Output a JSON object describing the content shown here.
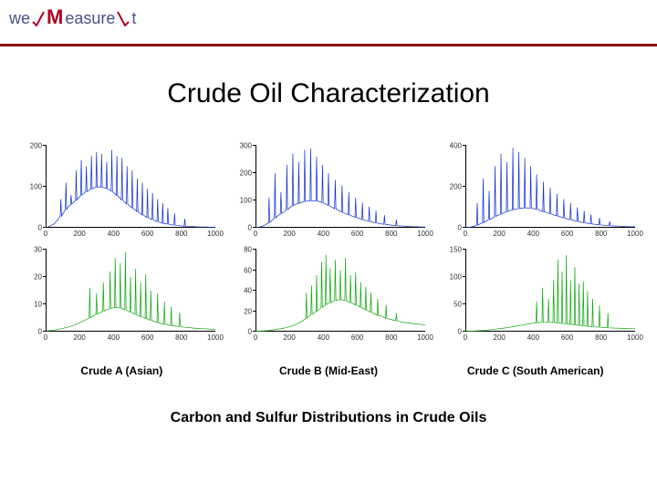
{
  "brand": {
    "we": "we",
    "m": "M",
    "easure": "easure",
    "it": "t"
  },
  "title": "Crude Oil Characterization",
  "subtitle": "Carbon and Sulfur Distributions in Crude Oils",
  "labels": [
    "Crude A (Asian)",
    "Crude B (Mid-East)",
    "Crude C (South American)"
  ],
  "colors": {
    "blue": "#1030d0",
    "green": "#10a810",
    "axis": "#000000",
    "rule": "#8a1515"
  },
  "axis_x": {
    "min": 0,
    "max": 1000,
    "ticks": [
      0,
      200,
      400,
      600,
      800,
      1000
    ]
  },
  "charts": [
    {
      "id": "A_blue",
      "row": 0,
      "col": 0,
      "color": "blue",
      "ymax": 200,
      "yticks": [
        0,
        100,
        200
      ],
      "baseline": [
        0,
        4,
        10,
        22,
        35,
        48,
        58,
        68,
        78,
        86,
        92,
        97,
        100,
        99,
        96,
        90,
        82,
        73,
        64,
        56,
        48,
        40,
        33,
        27,
        22,
        18,
        14,
        11,
        9,
        7,
        6,
        5,
        4,
        3,
        3,
        2,
        2,
        2,
        1,
        1
      ],
      "spikes": [
        [
          90,
          70
        ],
        [
          120,
          110
        ],
        [
          150,
          80
        ],
        [
          180,
          140
        ],
        [
          210,
          165
        ],
        [
          240,
          150
        ],
        [
          270,
          175
        ],
        [
          300,
          185
        ],
        [
          330,
          180
        ],
        [
          360,
          160
        ],
        [
          390,
          190
        ],
        [
          420,
          175
        ],
        [
          450,
          170
        ],
        [
          480,
          150
        ],
        [
          510,
          140
        ],
        [
          540,
          120
        ],
        [
          570,
          110
        ],
        [
          600,
          95
        ],
        [
          630,
          85
        ],
        [
          660,
          70
        ],
        [
          690,
          60
        ],
        [
          720,
          48
        ],
        [
          760,
          35
        ],
        [
          820,
          22
        ]
      ]
    },
    {
      "id": "B_blue",
      "row": 0,
      "col": 1,
      "color": "blue",
      "ymax": 300,
      "yticks": [
        0,
        100,
        200,
        300
      ],
      "baseline": [
        0,
        3,
        8,
        18,
        30,
        42,
        52,
        64,
        75,
        84,
        90,
        95,
        98,
        99,
        98,
        94,
        88,
        80,
        72,
        64,
        57,
        50,
        44,
        38,
        33,
        28,
        24,
        20,
        17,
        14,
        12,
        10,
        8,
        7,
        6,
        5,
        4,
        4,
        3,
        3
      ],
      "spikes": [
        [
          80,
          110
        ],
        [
          115,
          200
        ],
        [
          150,
          130
        ],
        [
          185,
          230
        ],
        [
          220,
          270
        ],
        [
          255,
          240
        ],
        [
          290,
          285
        ],
        [
          325,
          290
        ],
        [
          360,
          260
        ],
        [
          395,
          230
        ],
        [
          430,
          200
        ],
        [
          470,
          175
        ],
        [
          510,
          155
        ],
        [
          550,
          130
        ],
        [
          590,
          110
        ],
        [
          630,
          92
        ],
        [
          670,
          78
        ],
        [
          710,
          62
        ],
        [
          760,
          46
        ],
        [
          830,
          30
        ]
      ]
    },
    {
      "id": "C_blue",
      "row": 0,
      "col": 2,
      "color": "blue",
      "ymax": 400,
      "yticks": [
        0,
        200,
        400
      ],
      "baseline": [
        0,
        3,
        7,
        15,
        25,
        35,
        45,
        56,
        66,
        74,
        82,
        88,
        93,
        96,
        97,
        96,
        92,
        86,
        79,
        72,
        65,
        58,
        52,
        46,
        40,
        35,
        30,
        26,
        22,
        19,
        16,
        14,
        12,
        10,
        9,
        8,
        7,
        6,
        5,
        5
      ],
      "spikes": [
        [
          70,
          120
        ],
        [
          105,
          240
        ],
        [
          140,
          180
        ],
        [
          175,
          300
        ],
        [
          210,
          360
        ],
        [
          245,
          320
        ],
        [
          280,
          390
        ],
        [
          315,
          370
        ],
        [
          350,
          340
        ],
        [
          385,
          300
        ],
        [
          420,
          260
        ],
        [
          460,
          225
        ],
        [
          500,
          195
        ],
        [
          540,
          165
        ],
        [
          580,
          140
        ],
        [
          620,
          120
        ],
        [
          660,
          100
        ],
        [
          700,
          82
        ],
        [
          740,
          65
        ],
        [
          790,
          48
        ],
        [
          850,
          32
        ]
      ]
    },
    {
      "id": "A_green",
      "row": 1,
      "col": 0,
      "color": "green",
      "ymax": 30,
      "yticks": [
        0,
        10,
        20,
        30
      ],
      "baseline": [
        0.2,
        0.4,
        0.6,
        0.9,
        1.2,
        1.6,
        2.1,
        2.7,
        3.4,
        4.2,
        5.0,
        5.8,
        6.6,
        7.3,
        8.0,
        8.5,
        8.8,
        8.7,
        8.2,
        7.5,
        6.8,
        6.1,
        5.4,
        4.8,
        4.2,
        3.7,
        3.2,
        2.8,
        2.5,
        2.2,
        2.0,
        1.8,
        1.6,
        1.5,
        1.3,
        1.2,
        1.1,
        1.0,
        0.9,
        0.8
      ],
      "spikes": [
        [
          260,
          16
        ],
        [
          300,
          14
        ],
        [
          340,
          18
        ],
        [
          380,
          22
        ],
        [
          410,
          27
        ],
        [
          440,
          25
        ],
        [
          470,
          29
        ],
        [
          500,
          20
        ],
        [
          530,
          23
        ],
        [
          560,
          18
        ],
        [
          590,
          21
        ],
        [
          620,
          15
        ],
        [
          660,
          14
        ],
        [
          700,
          11
        ],
        [
          740,
          9
        ],
        [
          790,
          7
        ]
      ]
    },
    {
      "id": "B_green",
      "row": 1,
      "col": 1,
      "color": "green",
      "ymax": 80,
      "yticks": [
        0,
        20,
        40,
        60,
        80
      ],
      "baseline": [
        0.3,
        0.5,
        0.8,
        1.2,
        1.7,
        2.3,
        3.0,
        3.8,
        5.0,
        6.5,
        8.5,
        11,
        14,
        17,
        20,
        23,
        26,
        28,
        30,
        31,
        31,
        30,
        28,
        26,
        24,
        22,
        20,
        18,
        16,
        15,
        13,
        12,
        11,
        10,
        9,
        8.5,
        8,
        7.5,
        7,
        6.5
      ],
      "spikes": [
        [
          300,
          38
        ],
        [
          330,
          45
        ],
        [
          360,
          55
        ],
        [
          390,
          68
        ],
        [
          415,
          75
        ],
        [
          440,
          62
        ],
        [
          470,
          70
        ],
        [
          500,
          60
        ],
        [
          530,
          72
        ],
        [
          560,
          55
        ],
        [
          590,
          58
        ],
        [
          620,
          48
        ],
        [
          650,
          44
        ],
        [
          680,
          38
        ],
        [
          720,
          32
        ],
        [
          770,
          26
        ],
        [
          830,
          18
        ]
      ]
    },
    {
      "id": "C_green",
      "row": 1,
      "col": 2,
      "color": "green",
      "ymax": 150,
      "yticks": [
        0,
        50,
        100,
        150
      ],
      "baseline": [
        0.4,
        0.7,
        1.1,
        1.6,
        2.2,
        2.9,
        3.7,
        4.6,
        5.6,
        6.7,
        7.9,
        9.2,
        10.6,
        12.0,
        13.4,
        14.7,
        15.8,
        16.6,
        17.0,
        17.0,
        16.6,
        16.0,
        15.2,
        14.3,
        13.3,
        12.4,
        11.5,
        10.7,
        9.9,
        9.2,
        8.6,
        8.0,
        7.5,
        7.0,
        6.6,
        6.3,
        6.0,
        5.7,
        5.5,
        5.3
      ],
      "spikes": [
        [
          420,
          55
        ],
        [
          455,
          80
        ],
        [
          490,
          60
        ],
        [
          520,
          95
        ],
        [
          545,
          132
        ],
        [
          570,
          110
        ],
        [
          595,
          140
        ],
        [
          620,
          95
        ],
        [
          645,
          118
        ],
        [
          670,
          88
        ],
        [
          695,
          92
        ],
        [
          720,
          74
        ],
        [
          750,
          60
        ],
        [
          790,
          48
        ],
        [
          840,
          34
        ]
      ]
    }
  ]
}
